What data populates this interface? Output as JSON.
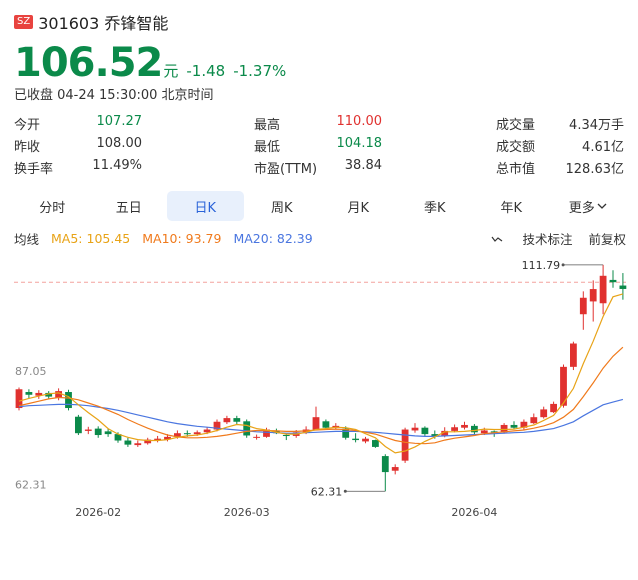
{
  "header": {
    "exchange_badge": "SZ",
    "code_name": "301603 乔锋智能"
  },
  "quote": {
    "price": "106.52",
    "unit": "元",
    "change": "-1.48",
    "change_pct": "-1.37%",
    "status": "已收盘 04-24 15:30:00 北京时间"
  },
  "stats": [
    [
      {
        "label": "今开",
        "value": "107.27",
        "color": "green"
      },
      {
        "label": "最高",
        "value": "110.00",
        "color": "red"
      },
      {
        "label": "成交量",
        "value": "4.34万手",
        "color": "dark"
      }
    ],
    [
      {
        "label": "昨收",
        "value": "108.00",
        "color": "dark"
      },
      {
        "label": "最低",
        "value": "104.18",
        "color": "green"
      },
      {
        "label": "成交额",
        "value": "4.61亿",
        "color": "dark"
      }
    ],
    [
      {
        "label": "换手率",
        "value": "11.49%",
        "color": "dark"
      },
      {
        "label": "市盈(TTM)",
        "value": "38.84",
        "color": "dark"
      },
      {
        "label": "总市值",
        "value": "128.63亿",
        "color": "dark"
      }
    ]
  ],
  "tabs": [
    "分时",
    "五日",
    "日K",
    "周K",
    "月K",
    "季K",
    "年K",
    "更多"
  ],
  "active_tab": "日K",
  "legend": {
    "title": "均线",
    "ma5": "MA5: 105.45",
    "ma10": "MA10: 93.79",
    "ma20": "MA20: 82.39",
    "tech_label": "技术标注",
    "adjust_label": "前复权"
  },
  "colors": {
    "up": "#e0312f",
    "down": "#0b8a4a",
    "ma5": "#e8a317",
    "ma10": "#f07a1c",
    "ma20": "#4a76e0",
    "accent": "#2a63d9"
  },
  "chart_data": {
    "type": "candlestick",
    "ylim": [
      60.4,
      114.6
    ],
    "y_ticks": [
      "87.05",
      "62.31"
    ],
    "y_tick_values": [
      87.05,
      62.31
    ],
    "x_ticks": [
      "2026-02",
      "2026-03",
      "2026-04"
    ],
    "x_tick_index": [
      8,
      23,
      46
    ],
    "prev_close": 108.0,
    "annotations": [
      {
        "label": "111.79",
        "index": 59,
        "value": 111.79
      },
      {
        "label": "62.31",
        "index": 37,
        "value": 62.31
      }
    ],
    "candles": [
      [
        80.5,
        84.6,
        80.0,
        85.0
      ],
      [
        84.0,
        83.4,
        82.5,
        84.6
      ],
      [
        83.2,
        83.8,
        82.5,
        84.4
      ],
      [
        83.8,
        83.0,
        82.4,
        84.2
      ],
      [
        82.8,
        84.2,
        82.2,
        84.8
      ],
      [
        84.0,
        80.5,
        80.0,
        84.5
      ],
      [
        78.6,
        75.0,
        74.6,
        79.0
      ],
      [
        75.5,
        75.8,
        74.8,
        76.4
      ],
      [
        76.0,
        74.6,
        74.0,
        76.5
      ],
      [
        75.4,
        74.8,
        74.2,
        76.0
      ],
      [
        74.8,
        73.4,
        72.9,
        75.2
      ],
      [
        73.4,
        72.5,
        72.0,
        74.0
      ],
      [
        72.4,
        72.8,
        72.0,
        73.4
      ],
      [
        72.8,
        73.6,
        72.5,
        74.0
      ],
      [
        73.4,
        73.8,
        73.0,
        74.4
      ],
      [
        73.6,
        74.2,
        73.2,
        74.8
      ],
      [
        74.2,
        75.0,
        73.8,
        75.6
      ],
      [
        75.0,
        74.8,
        74.2,
        75.6
      ],
      [
        74.8,
        75.2,
        74.4,
        75.6
      ],
      [
        75.2,
        75.8,
        74.8,
        76.3
      ],
      [
        75.8,
        77.5,
        75.4,
        78.0
      ],
      [
        77.4,
        78.3,
        77.0,
        78.8
      ],
      [
        78.3,
        77.5,
        77.0,
        78.8
      ],
      [
        77.6,
        74.5,
        74.0,
        78.0
      ],
      [
        74.2,
        74.2,
        73.6,
        74.7
      ],
      [
        74.2,
        75.8,
        74.0,
        76.2
      ],
      [
        75.6,
        75.0,
        74.8,
        76.0
      ],
      [
        74.6,
        74.4,
        73.5,
        75.0
      ],
      [
        74.4,
        75.2,
        74.0,
        75.7
      ],
      [
        75.2,
        75.8,
        74.8,
        76.5
      ],
      [
        75.8,
        78.5,
        75.6,
        80.8
      ],
      [
        77.6,
        76.2,
        75.8,
        78.0
      ],
      [
        76.2,
        76.6,
        75.9,
        77.2
      ],
      [
        76.0,
        74.0,
        73.6,
        76.5
      ],
      [
        73.8,
        73.5,
        73.0,
        75.0
      ],
      [
        73.2,
        73.8,
        72.8,
        74.2
      ],
      [
        73.5,
        72.0,
        71.8,
        73.6
      ],
      [
        70.0,
        66.5,
        62.31,
        70.4
      ],
      [
        66.8,
        67.6,
        66.0,
        68.2
      ],
      [
        69.0,
        75.8,
        68.5,
        76.2
      ],
      [
        75.6,
        76.2,
        75.1,
        77.2
      ],
      [
        76.2,
        74.8,
        74.4,
        76.5
      ],
      [
        74.8,
        74.3,
        73.8,
        75.6
      ],
      [
        74.5,
        75.5,
        74.1,
        76.3
      ],
      [
        75.5,
        76.3,
        75.2,
        76.9
      ],
      [
        76.2,
        76.8,
        75.8,
        77.5
      ],
      [
        76.6,
        75.2,
        74.8,
        77.0
      ],
      [
        75.0,
        75.6,
        74.6,
        76.2
      ],
      [
        75.4,
        75.2,
        74.2,
        75.6
      ],
      [
        75.2,
        76.8,
        74.9,
        77.2
      ],
      [
        76.8,
        76.2,
        75.8,
        77.6
      ],
      [
        76.2,
        77.5,
        75.6,
        78.0
      ],
      [
        77.2,
        78.5,
        77.0,
        79.3
      ],
      [
        78.5,
        80.2,
        78.2,
        80.8
      ],
      [
        79.6,
        81.4,
        79.4,
        81.9
      ],
      [
        81.0,
        89.5,
        80.6,
        90.0
      ],
      [
        89.5,
        94.6,
        88.8,
        95.0
      ],
      [
        101.0,
        104.6,
        97.6,
        106.0
      ],
      [
        103.8,
        106.5,
        99.4,
        108.4
      ],
      [
        103.4,
        109.4,
        101.0,
        111.79
      ],
      [
        108.5,
        108.0,
        106.8,
        110.6
      ],
      [
        107.27,
        106.52,
        104.18,
        110.0
      ]
    ],
    "ma5": [
      82.0,
      82.6,
      83.1,
      83.6,
      83.8,
      83.0,
      81.2,
      79.5,
      77.9,
      76.0,
      74.8,
      74.1,
      73.6,
      73.4,
      73.4,
      73.6,
      74.1,
      74.4,
      74.6,
      75.0,
      75.6,
      76.3,
      76.9,
      76.7,
      76.0,
      75.7,
      75.2,
      74.8,
      74.8,
      75.2,
      75.8,
      76.0,
      76.3,
      76.2,
      75.8,
      74.9,
      74.0,
      72.1,
      70.7,
      71.1,
      72.0,
      73.2,
      74.2,
      75.3,
      75.3,
      75.4,
      75.6,
      75.9,
      75.8,
      75.8,
      75.9,
      76.3,
      76.8,
      77.8,
      78.9,
      81.6,
      84.8,
      90.2,
      95.1,
      100.5,
      104.8,
      105.45
    ],
    "ma10": [
      81.0,
      81.5,
      82.0,
      82.5,
      82.8,
      82.7,
      82.3,
      81.6,
      80.9,
      80.0,
      79.1,
      78.0,
      77.0,
      76.1,
      75.3,
      74.6,
      74.2,
      74.0,
      74.0,
      74.1,
      74.3,
      74.6,
      75.0,
      75.4,
      75.6,
      75.6,
      75.5,
      75.4,
      75.4,
      75.5,
      75.7,
      75.8,
      75.9,
      75.8,
      75.6,
      75.2,
      74.8,
      74.1,
      73.4,
      73.0,
      72.8,
      72.7,
      72.9,
      73.5,
      73.9,
      74.2,
      74.5,
      74.9,
      75.1,
      75.3,
      75.5,
      75.7,
      76.1,
      76.6,
      77.3,
      78.5,
      80.2,
      83.0,
      86.0,
      89.2,
      91.8,
      93.79
    ],
    "ma20": [
      80.8,
      81.0,
      81.1,
      81.2,
      81.3,
      81.3,
      81.2,
      81.0,
      80.7,
      80.4,
      80.0,
      79.5,
      79.0,
      78.5,
      78.0,
      77.5,
      77.1,
      76.8,
      76.5,
      76.3,
      76.1,
      75.9,
      75.7,
      75.5,
      75.3,
      75.2,
      75.1,
      75.0,
      75.0,
      75.1,
      75.2,
      75.3,
      75.4,
      75.4,
      75.4,
      75.3,
      75.2,
      75.0,
      74.8,
      74.6,
      74.4,
      74.3,
      74.3,
      74.4,
      74.5,
      74.6,
      74.7,
      74.8,
      74.9,
      75.0,
      75.1,
      75.2,
      75.4,
      75.7,
      76.0,
      76.7,
      77.5,
      78.8,
      80.0,
      81.2,
      81.8,
      82.39
    ]
  }
}
